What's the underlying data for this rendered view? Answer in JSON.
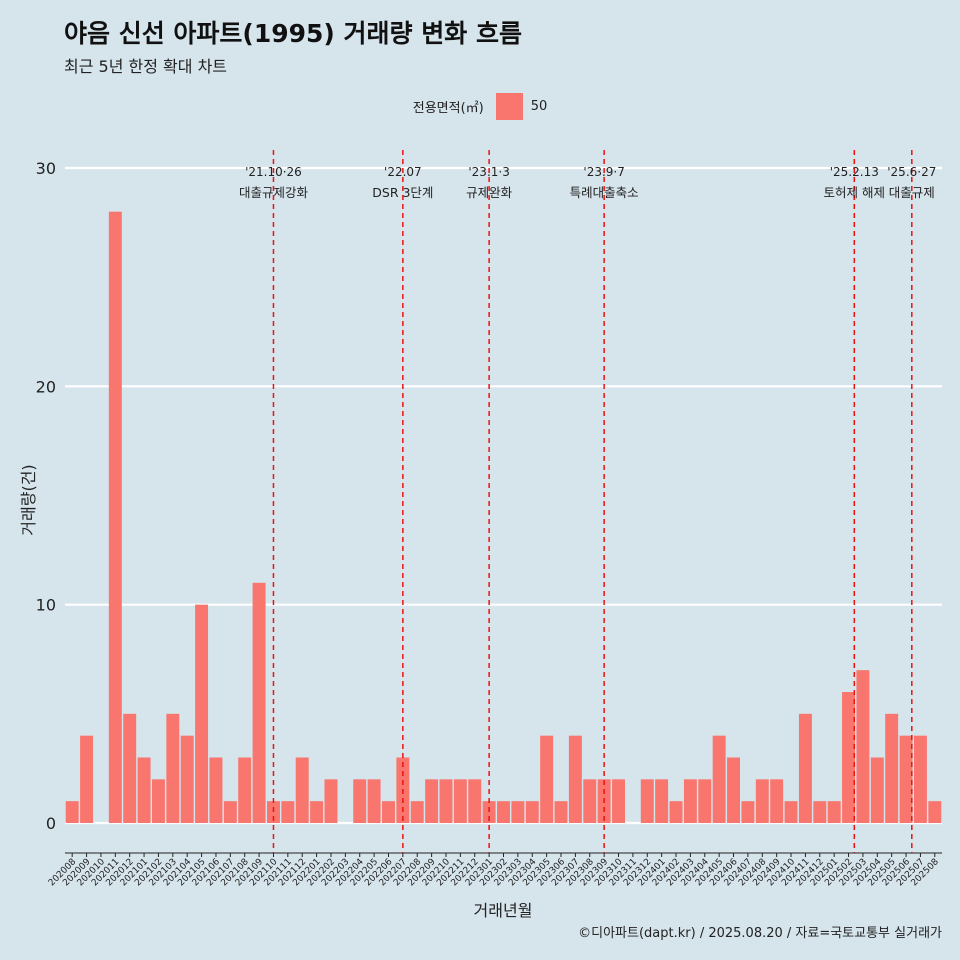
{
  "title": "야음 신선 아파트(1995) 거래량 변화 흐름",
  "subtitle": "최근 5년 한정 확대 차트",
  "legend": {
    "title": "전용면적(㎡)",
    "item": "50",
    "color": "#f8766d"
  },
  "caption": "©디아파트(dapt.kr) / 2025.08.20 / 자료=국토교통부 실거래가",
  "chart_data": {
    "type": "bar",
    "xlabel": "거래년월",
    "ylabel": "거래량(건)",
    "ylim": [
      0,
      30
    ],
    "yticks": [
      "0",
      "10",
      "20",
      "30"
    ],
    "grid": true,
    "bar_color": "#f8766d",
    "categories": [
      "202008",
      "202009",
      "202010",
      "202011",
      "202012",
      "202101",
      "202102",
      "202103",
      "202104",
      "202105",
      "202106",
      "202107",
      "202108",
      "202109",
      "202110",
      "202111",
      "202112",
      "202201",
      "202202",
      "202203",
      "202204",
      "202205",
      "202206",
      "202207",
      "202208",
      "202209",
      "202210",
      "202211",
      "202212",
      "202301",
      "202302",
      "202303",
      "202304",
      "202305",
      "202306",
      "202307",
      "202308",
      "202309",
      "202310",
      "202311",
      "202312",
      "202401",
      "202402",
      "202403",
      "202404",
      "202405",
      "202406",
      "202407",
      "202408",
      "202409",
      "202410",
      "202411",
      "202412",
      "202501",
      "202502",
      "202503",
      "202504",
      "202505",
      "202506",
      "202507",
      "202508"
    ],
    "values": [
      1,
      4,
      0,
      28,
      5,
      3,
      2,
      5,
      4,
      10,
      3,
      1,
      3,
      11,
      1,
      1,
      3,
      1,
      2,
      0,
      2,
      2,
      1,
      3,
      1,
      2,
      2,
      2,
      2,
      1,
      1,
      1,
      1,
      4,
      1,
      4,
      2,
      2,
      2,
      0,
      2,
      2,
      1,
      2,
      2,
      4,
      3,
      1,
      2,
      2,
      1,
      5,
      1,
      1,
      6,
      7,
      3,
      5,
      4,
      4,
      1
    ],
    "events": [
      {
        "position": 14.0,
        "date": "'21.10·26",
        "label": "대출규제강화"
      },
      {
        "position": 23.0,
        "date": "'22.07",
        "label": "DSR 3단계"
      },
      {
        "position": 29.0,
        "date": "'23.1·3",
        "label": "규제완화"
      },
      {
        "position": 37.0,
        "date": "'23.9·7",
        "label": "특례대출축소"
      },
      {
        "position": 54.4,
        "date": "'25.2.13",
        "label": "토허제 해제"
      },
      {
        "position": 58.4,
        "date": "'25.6·27",
        "label": "대출규제"
      }
    ]
  }
}
